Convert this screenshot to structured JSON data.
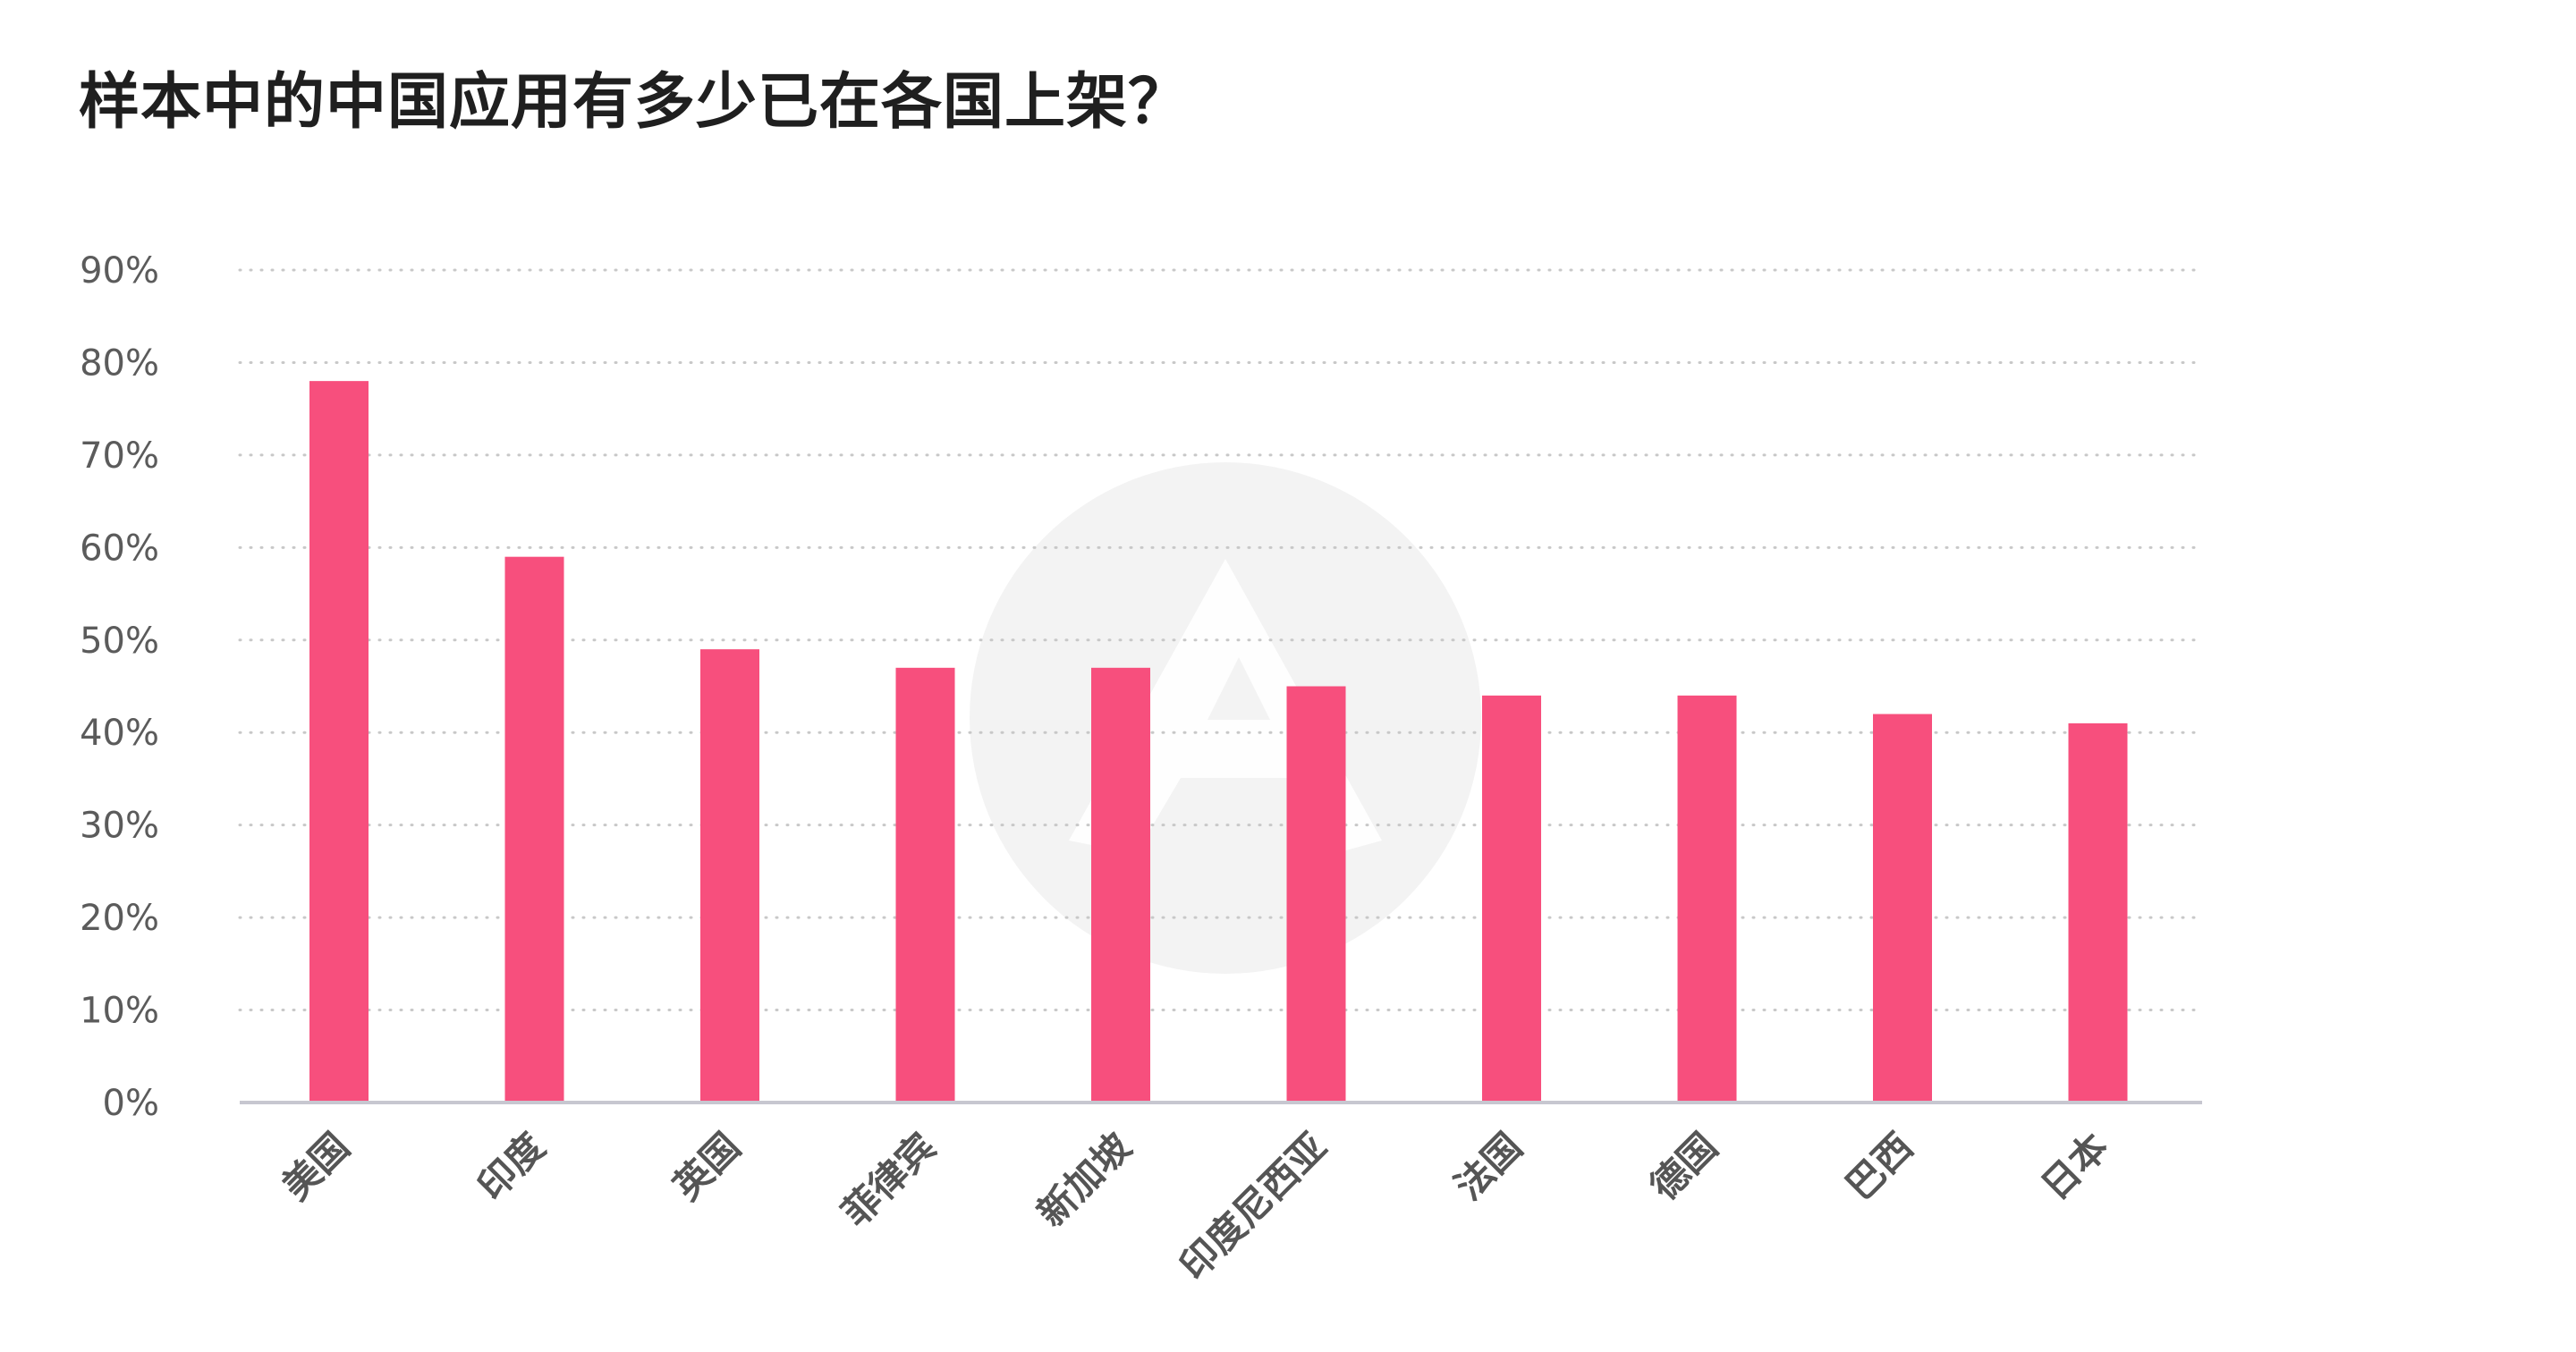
{
  "chart_data": {
    "type": "bar",
    "title": "样本中的中国应用有多少已在各国上架？",
    "xlabel": "",
    "ylabel": "",
    "categories": [
      "美国",
      "印度",
      "英国",
      "菲律宾",
      "新加坡",
      "印度尼西亚",
      "法国",
      "德国",
      "巴西",
      "日本"
    ],
    "values": [
      78,
      59,
      49,
      47,
      47,
      45,
      44,
      44,
      42,
      41
    ],
    "value_unit": "%",
    "ylim": [
      0,
      90
    ],
    "yticks": [
      0,
      10,
      20,
      30,
      40,
      50,
      60,
      70,
      80,
      90
    ],
    "ytick_labels": [
      "0%",
      "10%",
      "20%",
      "30%",
      "40%",
      "50%",
      "60%",
      "70%",
      "80%",
      "90%"
    ],
    "grid": true,
    "grid_style": "dotted",
    "legend": "none",
    "colors": {
      "bar": "#f74f7d",
      "grid": "#c8c8c8",
      "axis": "#c7c7d0",
      "watermark": "#f3f3f3"
    }
  },
  "watermark": {
    "icon": "brand-logo-icon"
  }
}
